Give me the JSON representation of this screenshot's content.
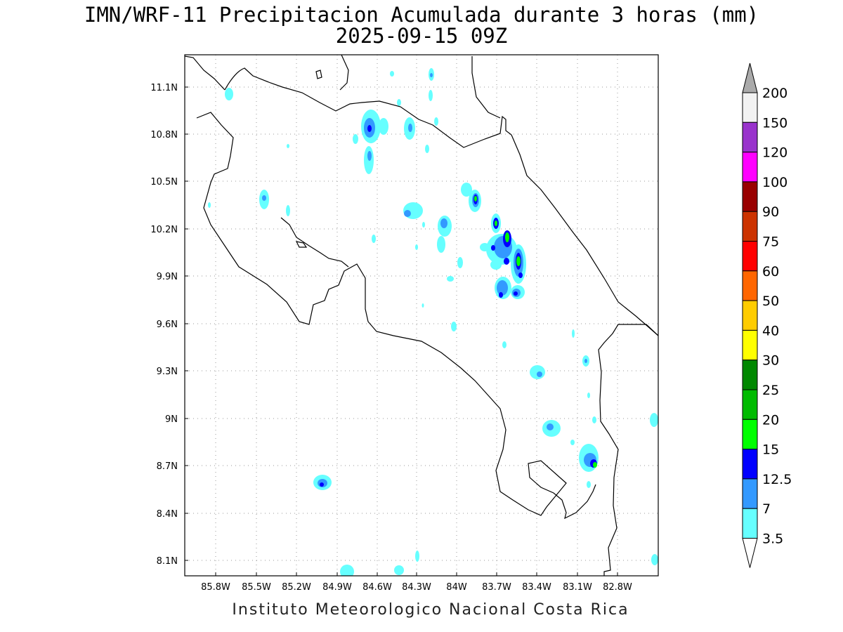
{
  "title_line1": "IMN/WRF-11 Precipitacion Acumulada durante 3 horas (mm)",
  "title_line2": "2025-09-15 09Z",
  "footer": "Instituto Meteorologico Nacional Costa Rica",
  "map": {
    "lon_ticks": [
      "85.8W",
      "85.5W",
      "85.2W",
      "84.9W",
      "84.6W",
      "84.3W",
      "84W",
      "83.7W",
      "83.4W",
      "83.1W",
      "82.8W"
    ],
    "lat_ticks": [
      "11.1N",
      "10.8N",
      "10.5N",
      "10.2N",
      "9.9N",
      "9.6N",
      "9.3N",
      "9N",
      "8.7N",
      "8.4N",
      "8.1N"
    ],
    "grid": true
  },
  "colorbar": {
    "labels": [
      "200",
      "150",
      "120",
      "100",
      "90",
      "75",
      "60",
      "50",
      "40",
      "30",
      "25",
      "20",
      "15",
      "12.5",
      "7",
      "3.5"
    ],
    "colors": [
      "#f2f2f2",
      "#9933cc",
      "#ff00ff",
      "#990000",
      "#cc3300",
      "#ff0000",
      "#ff6600",
      "#ffcc00",
      "#ffff00",
      "#008800",
      "#00bb00",
      "#00ff00",
      "#0000ff",
      "#3399ff",
      "#66ffff"
    ],
    "cap_top": "#aaaaaa",
    "cap_bottom": "#ffffff"
  },
  "rain_colors": {
    "light": "#66ffff",
    "mid": "#3399ff",
    "heavy": "#0000ff",
    "green": "#00ff00",
    "dkgreen": "#00bb00"
  }
}
